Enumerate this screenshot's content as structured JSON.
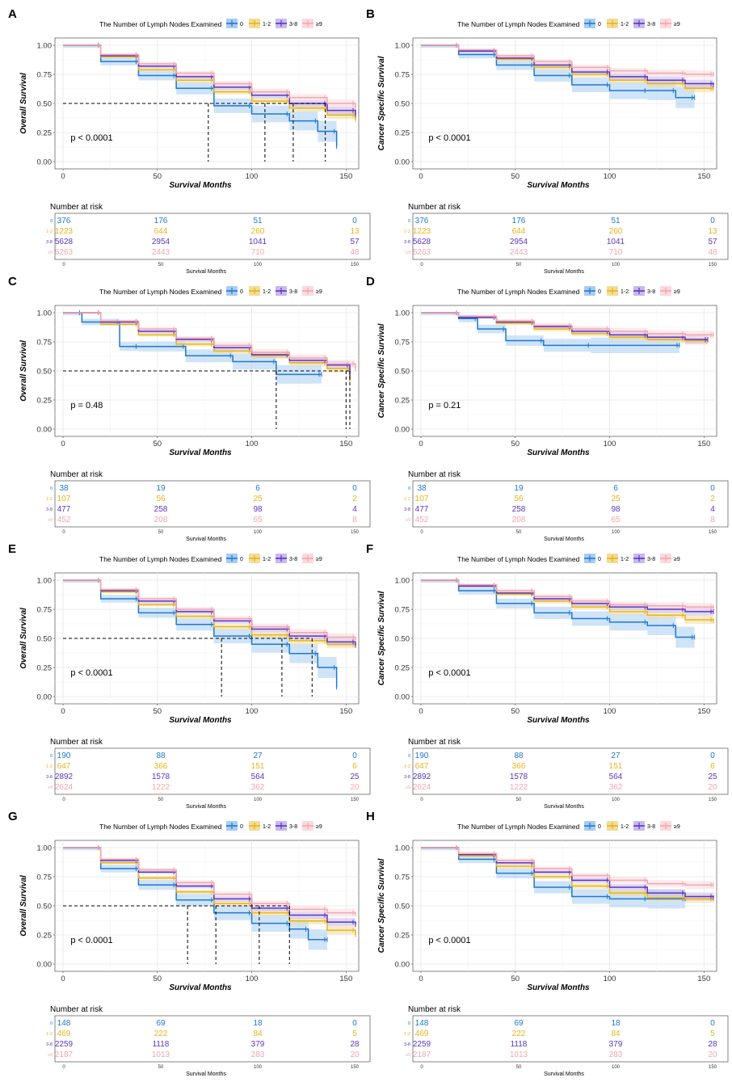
{
  "legend": {
    "title": "The Number of Lymph Nodes Examined",
    "groups": [
      {
        "label": "0",
        "color": "#1f78d1",
        "band": "#a8cdf2"
      },
      {
        "label": "1-2",
        "color": "#e8b419",
        "band": "#f3dc98"
      },
      {
        "label": "3-8",
        "color": "#5a35c4",
        "band": "#c8b9ee"
      },
      {
        "label": "≥9",
        "color": "#f2a6ae",
        "band": "#fbd9dd"
      }
    ]
  },
  "axes": {
    "x_title": "Survival Months",
    "x_ticks": [
      "0",
      "50",
      "100",
      "150"
    ],
    "y_ticks": [
      "0.00",
      "0.25",
      "0.50",
      "0.75",
      "1.00"
    ],
    "risk_title": "Number at risk",
    "risk_x_title": "Survival Months",
    "risk_x_ticks": [
      "0",
      "50",
      "100",
      "150"
    ]
  },
  "chart_data": [
    {
      "type": "line",
      "panel": "A",
      "ylabel": "Overall Survival",
      "pvalue": "p < 0.0001",
      "xlim": [
        0,
        155
      ],
      "ylim": [
        0,
        1
      ],
      "median_months": [
        77,
        107,
        122,
        139
      ],
      "series": [
        {
          "name": "0",
          "x": [
            0,
            20,
            40,
            60,
            80,
            100,
            120,
            135,
            145
          ],
          "y": [
            1.0,
            0.86,
            0.74,
            0.63,
            0.48,
            0.41,
            0.35,
            0.26,
            0.13
          ]
        },
        {
          "name": "1-2",
          "x": [
            0,
            20,
            40,
            60,
            80,
            100,
            120,
            140,
            155
          ],
          "y": [
            1.0,
            0.9,
            0.79,
            0.7,
            0.6,
            0.52,
            0.46,
            0.4,
            0.36
          ]
        },
        {
          "name": "3-8",
          "x": [
            0,
            20,
            40,
            60,
            80,
            100,
            120,
            140,
            155
          ],
          "y": [
            1.0,
            0.91,
            0.82,
            0.73,
            0.64,
            0.57,
            0.5,
            0.44,
            0.4
          ]
        },
        {
          "name": "≥9",
          "x": [
            0,
            20,
            40,
            60,
            80,
            100,
            120,
            140,
            155
          ],
          "y": [
            1.0,
            0.92,
            0.84,
            0.76,
            0.67,
            0.6,
            0.55,
            0.5,
            0.47
          ]
        }
      ],
      "risk_table": {
        "0": [
          "376",
          "176",
          "51",
          "0"
        ],
        "1-2": [
          "1223",
          "644",
          "260",
          "13"
        ],
        "3-8": [
          "5628",
          "2954",
          "1041",
          "57"
        ],
        "≥9": [
          "5263",
          "2443",
          "710",
          "48"
        ]
      }
    },
    {
      "type": "line",
      "panel": "B",
      "ylabel": "Cancer Specific Survival",
      "pvalue": "p < 0.0001",
      "xlim": [
        0,
        155
      ],
      "ylim": [
        0,
        1
      ],
      "median_months": [],
      "series": [
        {
          "name": "0",
          "x": [
            0,
            20,
            40,
            60,
            80,
            100,
            120,
            135,
            145
          ],
          "y": [
            1.0,
            0.92,
            0.83,
            0.74,
            0.66,
            0.61,
            0.61,
            0.55,
            0.55
          ]
        },
        {
          "name": "1-2",
          "x": [
            0,
            20,
            40,
            60,
            80,
            100,
            120,
            140,
            155
          ],
          "y": [
            1.0,
            0.95,
            0.88,
            0.81,
            0.75,
            0.7,
            0.67,
            0.63,
            0.63
          ]
        },
        {
          "name": "3-8",
          "x": [
            0,
            20,
            40,
            60,
            80,
            100,
            120,
            140,
            155
          ],
          "y": [
            1.0,
            0.95,
            0.89,
            0.83,
            0.77,
            0.73,
            0.7,
            0.67,
            0.66
          ]
        },
        {
          "name": "≥9",
          "x": [
            0,
            20,
            40,
            60,
            80,
            100,
            120,
            140,
            155
          ],
          "y": [
            1.0,
            0.96,
            0.91,
            0.86,
            0.81,
            0.78,
            0.76,
            0.75,
            0.75
          ]
        }
      ],
      "risk_table": {
        "0": [
          "376",
          "176",
          "51",
          "0"
        ],
        "1-2": [
          "1223",
          "644",
          "260",
          "13"
        ],
        "3-8": [
          "5628",
          "2954",
          "1041",
          "57"
        ],
        "≥9": [
          "5263",
          "2443",
          "710",
          "48"
        ]
      }
    },
    {
      "type": "line",
      "panel": "C",
      "ylabel": "Overall Survival",
      "pvalue": "p = 0.48",
      "xlim": [
        0,
        155
      ],
      "ylim": [
        0,
        1
      ],
      "median_months": [
        113,
        150,
        152
      ],
      "series": [
        {
          "name": "0",
          "x": [
            0,
            10,
            30,
            40,
            65,
            90,
            113,
            137
          ],
          "y": [
            1.0,
            0.92,
            0.71,
            0.71,
            0.63,
            0.58,
            0.47,
            0.47
          ]
        },
        {
          "name": "1-2",
          "x": [
            0,
            20,
            40,
            60,
            80,
            100,
            120,
            140,
            152
          ],
          "y": [
            1.0,
            0.9,
            0.81,
            0.73,
            0.67,
            0.63,
            0.57,
            0.52,
            0.42
          ]
        },
        {
          "name": "3-8",
          "x": [
            0,
            20,
            40,
            60,
            80,
            100,
            120,
            140,
            152
          ],
          "y": [
            1.0,
            0.92,
            0.84,
            0.77,
            0.7,
            0.64,
            0.59,
            0.55,
            0.44
          ]
        },
        {
          "name": "≥9",
          "x": [
            0,
            20,
            40,
            60,
            80,
            100,
            120,
            140,
            155
          ],
          "y": [
            1.0,
            0.93,
            0.86,
            0.78,
            0.72,
            0.66,
            0.61,
            0.56,
            0.52
          ]
        }
      ],
      "risk_table": {
        "0": [
          "38",
          "19",
          "6",
          "0"
        ],
        "1-2": [
          "107",
          "56",
          "25",
          "2"
        ],
        "3-8": [
          "477",
          "258",
          "98",
          "4"
        ],
        "≥9": [
          "452",
          "208",
          "65",
          "8"
        ]
      }
    },
    {
      "type": "line",
      "panel": "D",
      "ylabel": "Cancer Specific Survival",
      "pvalue": "p = 0.21",
      "xlim": [
        0,
        155
      ],
      "ylim": [
        0,
        1
      ],
      "median_months": [],
      "series": [
        {
          "name": "0",
          "x": [
            0,
            20,
            30,
            45,
            65,
            90,
            137
          ],
          "y": [
            1.0,
            0.95,
            0.86,
            0.76,
            0.72,
            0.72,
            0.72
          ]
        },
        {
          "name": "1-2",
          "x": [
            0,
            20,
            40,
            60,
            80,
            100,
            120,
            140,
            152
          ],
          "y": [
            1.0,
            0.96,
            0.91,
            0.86,
            0.82,
            0.79,
            0.77,
            0.76,
            0.76
          ]
        },
        {
          "name": "3-8",
          "x": [
            0,
            20,
            40,
            60,
            80,
            100,
            120,
            140,
            152
          ],
          "y": [
            1.0,
            0.96,
            0.92,
            0.88,
            0.84,
            0.81,
            0.79,
            0.77,
            0.77
          ]
        },
        {
          "name": "≥9",
          "x": [
            0,
            20,
            40,
            60,
            80,
            100,
            120,
            140,
            155
          ],
          "y": [
            1.0,
            0.97,
            0.93,
            0.89,
            0.86,
            0.84,
            0.82,
            0.81,
            0.81
          ]
        }
      ],
      "risk_table": {
        "0": [
          "38",
          "19",
          "6",
          "0"
        ],
        "1-2": [
          "107",
          "56",
          "25",
          "2"
        ],
        "3-8": [
          "477",
          "258",
          "98",
          "4"
        ],
        "≥9": [
          "452",
          "208",
          "65",
          "8"
        ]
      }
    },
    {
      "type": "line",
      "panel": "E",
      "ylabel": "Overall Survival",
      "pvalue": "p < 0.0001",
      "xlim": [
        0,
        155
      ],
      "ylim": [
        0,
        1
      ],
      "median_months": [
        84,
        116,
        132
      ],
      "series": [
        {
          "name": "0",
          "x": [
            0,
            20,
            40,
            60,
            80,
            100,
            120,
            135,
            145
          ],
          "y": [
            1.0,
            0.84,
            0.72,
            0.62,
            0.52,
            0.45,
            0.37,
            0.25,
            0.08
          ]
        },
        {
          "name": "1-2",
          "x": [
            0,
            20,
            40,
            60,
            80,
            100,
            120,
            140,
            155
          ],
          "y": [
            1.0,
            0.9,
            0.79,
            0.69,
            0.6,
            0.53,
            0.48,
            0.45,
            0.44
          ]
        },
        {
          "name": "3-8",
          "x": [
            0,
            20,
            40,
            60,
            80,
            100,
            120,
            140,
            155
          ],
          "y": [
            1.0,
            0.91,
            0.82,
            0.73,
            0.65,
            0.58,
            0.52,
            0.47,
            0.44
          ]
        },
        {
          "name": "≥9",
          "x": [
            0,
            20,
            40,
            60,
            80,
            100,
            120,
            140,
            155
          ],
          "y": [
            1.0,
            0.92,
            0.84,
            0.75,
            0.67,
            0.6,
            0.55,
            0.51,
            0.49
          ]
        }
      ],
      "risk_table": {
        "0": [
          "190",
          "88",
          "27",
          "0"
        ],
        "1-2": [
          "647",
          "366",
          "151",
          "6"
        ],
        "3-8": [
          "2892",
          "1578",
          "564",
          "25"
        ],
        "≥9": [
          "2624",
          "1222",
          "362",
          "20"
        ]
      }
    },
    {
      "type": "line",
      "panel": "F",
      "ylabel": "Cancer Specific Survival",
      "pvalue": "p < 0.0001",
      "xlim": [
        0,
        155
      ],
      "ylim": [
        0,
        1
      ],
      "median_months": [],
      "series": [
        {
          "name": "0",
          "x": [
            0,
            20,
            40,
            60,
            80,
            100,
            120,
            135,
            145
          ],
          "y": [
            1.0,
            0.91,
            0.8,
            0.72,
            0.67,
            0.64,
            0.61,
            0.51,
            0.51
          ]
        },
        {
          "name": "1-2",
          "x": [
            0,
            20,
            40,
            60,
            80,
            100,
            120,
            140,
            155
          ],
          "y": [
            1.0,
            0.95,
            0.88,
            0.82,
            0.77,
            0.73,
            0.7,
            0.66,
            0.65
          ]
        },
        {
          "name": "3-8",
          "x": [
            0,
            20,
            40,
            60,
            80,
            100,
            120,
            140,
            155
          ],
          "y": [
            1.0,
            0.95,
            0.89,
            0.84,
            0.8,
            0.77,
            0.75,
            0.73,
            0.73
          ]
        },
        {
          "name": "≥9",
          "x": [
            0,
            20,
            40,
            60,
            80,
            100,
            120,
            140,
            155
          ],
          "y": [
            1.0,
            0.96,
            0.91,
            0.86,
            0.82,
            0.79,
            0.78,
            0.77,
            0.77
          ]
        }
      ],
      "risk_table": {
        "0": [
          "190",
          "88",
          "27",
          "0"
        ],
        "1-2": [
          "647",
          "366",
          "151",
          "6"
        ],
        "3-8": [
          "2892",
          "1578",
          "564",
          "25"
        ],
        "≥9": [
          "2624",
          "1222",
          "362",
          "20"
        ]
      }
    },
    {
      "type": "line",
      "panel": "G",
      "ylabel": "Overall Survival",
      "pvalue": "p < 0.0001",
      "xlim": [
        0,
        155
      ],
      "ylim": [
        0,
        1
      ],
      "median_months": [
        66,
        81,
        104,
        120
      ],
      "series": [
        {
          "name": "0",
          "x": [
            0,
            20,
            40,
            60,
            80,
            100,
            120,
            130,
            140
          ],
          "y": [
            1.0,
            0.82,
            0.68,
            0.55,
            0.44,
            0.35,
            0.3,
            0.21,
            0.21
          ]
        },
        {
          "name": "1-2",
          "x": [
            0,
            20,
            40,
            60,
            80,
            100,
            120,
            140,
            155
          ],
          "y": [
            1.0,
            0.87,
            0.74,
            0.62,
            0.52,
            0.44,
            0.37,
            0.29,
            0.25
          ]
        },
        {
          "name": "3-8",
          "x": [
            0,
            20,
            40,
            60,
            80,
            100,
            120,
            140,
            155
          ],
          "y": [
            1.0,
            0.89,
            0.79,
            0.67,
            0.56,
            0.48,
            0.42,
            0.36,
            0.34
          ]
        },
        {
          "name": "≥9",
          "x": [
            0,
            20,
            40,
            60,
            80,
            100,
            120,
            140,
            155
          ],
          "y": [
            1.0,
            0.9,
            0.81,
            0.7,
            0.6,
            0.52,
            0.47,
            0.44,
            0.43
          ]
        }
      ],
      "risk_table": {
        "0": [
          "148",
          "69",
          "18",
          "0"
        ],
        "1-2": [
          "469",
          "222",
          "84",
          "5"
        ],
        "3-8": [
          "2259",
          "1118",
          "379",
          "28"
        ],
        "≥9": [
          "2187",
          "1013",
          "283",
          "20"
        ]
      }
    },
    {
      "type": "line",
      "panel": "H",
      "ylabel": "Cancer Specific Survival",
      "pvalue": "p < 0.0001",
      "xlim": [
        0,
        155
      ],
      "ylim": [
        0,
        1
      ],
      "median_months": [],
      "series": [
        {
          "name": "0",
          "x": [
            0,
            20,
            40,
            60,
            80,
            100,
            120,
            140
          ],
          "y": [
            1.0,
            0.9,
            0.78,
            0.66,
            0.58,
            0.56,
            0.56,
            0.56
          ]
        },
        {
          "name": "1-2",
          "x": [
            0,
            20,
            40,
            60,
            80,
            100,
            120,
            140,
            155
          ],
          "y": [
            1.0,
            0.93,
            0.84,
            0.75,
            0.67,
            0.61,
            0.57,
            0.56,
            0.56
          ]
        },
        {
          "name": "3-8",
          "x": [
            0,
            20,
            40,
            60,
            80,
            100,
            120,
            140,
            155
          ],
          "y": [
            1.0,
            0.94,
            0.87,
            0.79,
            0.72,
            0.66,
            0.61,
            0.58,
            0.57
          ]
        },
        {
          "name": "≥9",
          "x": [
            0,
            20,
            40,
            60,
            80,
            100,
            120,
            140,
            155
          ],
          "y": [
            1.0,
            0.95,
            0.89,
            0.82,
            0.76,
            0.72,
            0.69,
            0.68,
            0.68
          ]
        }
      ],
      "risk_table": {
        "0": [
          "148",
          "69",
          "18",
          "0"
        ],
        "1-2": [
          "469",
          "222",
          "84",
          "5"
        ],
        "3-8": [
          "2259",
          "1118",
          "379",
          "28"
        ],
        "≥9": [
          "2187",
          "1013",
          "283",
          "20"
        ]
      }
    }
  ]
}
